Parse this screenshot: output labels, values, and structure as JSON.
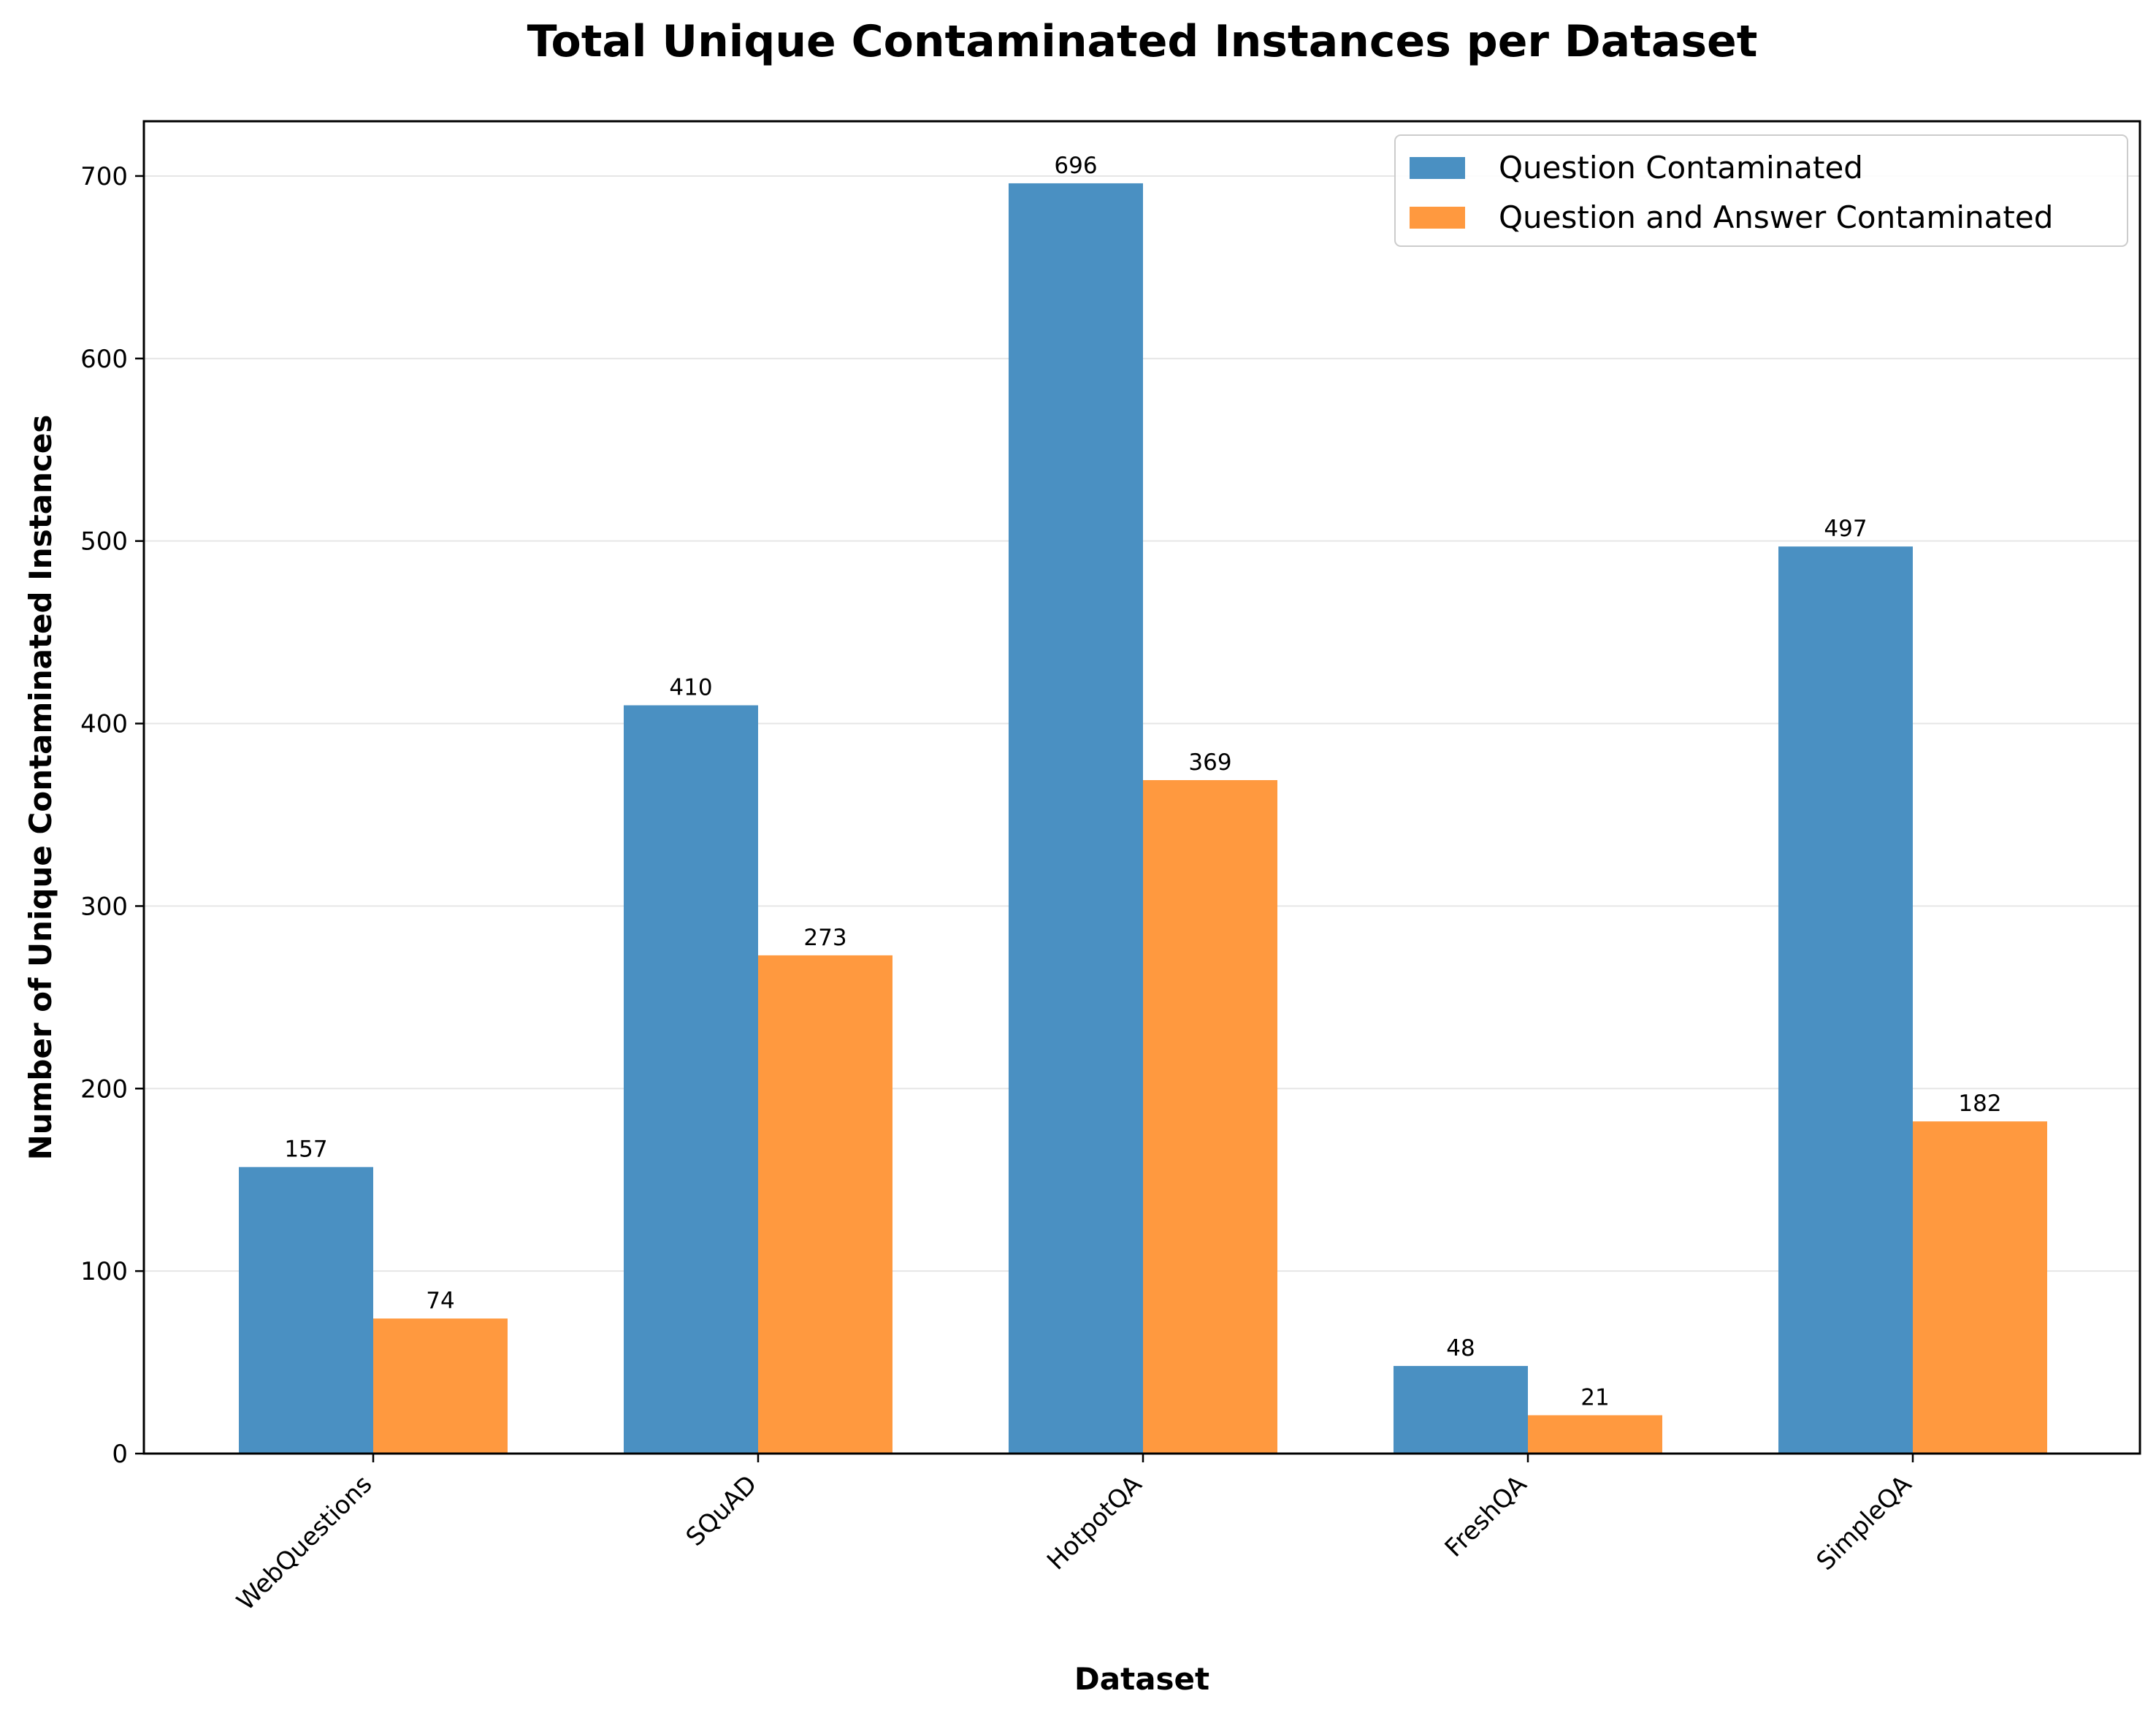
{
  "chart_data": {
    "type": "bar",
    "title": "Total Unique Contaminated Instances per Dataset",
    "xlabel": "Dataset",
    "ylabel": "Number of Unique Contaminated Instances",
    "categories": [
      "WebQuestions",
      "SQuAD",
      "HotpotQA",
      "FreshQA",
      "SimpleQA"
    ],
    "series": [
      {
        "name": "Question Contaminated",
        "color": "#4a90c2",
        "values": [
          157,
          410,
          696,
          48,
          497
        ]
      },
      {
        "name": "Question and Answer Contaminated",
        "color": "#ff993f",
        "values": [
          74,
          273,
          369,
          21,
          182
        ]
      }
    ],
    "ylim": [
      0,
      730
    ],
    "yticks": [
      0,
      100,
      200,
      300,
      400,
      500,
      600,
      700
    ],
    "grid": "horizontal",
    "legend": "top-right"
  }
}
